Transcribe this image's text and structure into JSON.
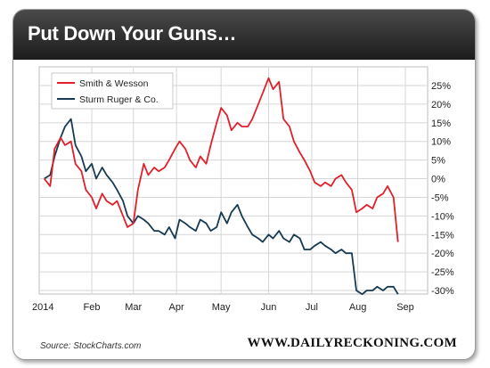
{
  "title": "Put Down Your Guns…",
  "source": "Source: StockCharts.com",
  "website": "WWW.DAILYRECKONING.COM",
  "chart_data": {
    "type": "line",
    "title": "Put Down Your Guns…",
    "x_range": [
      "2014-01-01",
      "2014-09-05"
    ],
    "x_tick_labels": [
      {
        "label": "2014",
        "date": "2014-01-01"
      },
      {
        "label": "Feb",
        "date": "2014-02-03"
      },
      {
        "label": "Mar",
        "date": "2014-03-03"
      },
      {
        "label": "Apr",
        "date": "2014-04-01"
      },
      {
        "label": "May",
        "date": "2014-05-01"
      },
      {
        "label": "Jun",
        "date": "2014-06-02"
      },
      {
        "label": "Jul",
        "date": "2014-07-01"
      },
      {
        "label": "Aug",
        "date": "2014-08-01"
      },
      {
        "label": "Sep",
        "date": "2014-09-02"
      }
    ],
    "y_unit": "%",
    "ylim": [
      -32,
      27
    ],
    "y_ticks": [
      25,
      20,
      15,
      10,
      5,
      0,
      -5,
      -10,
      -15,
      -20,
      -25,
      -30
    ],
    "y_axis_side": "right",
    "grid": true,
    "legend_position": "top-left",
    "series": [
      {
        "name": "Smith & Wesson",
        "color": "#e0202a",
        "points": [
          [
            "2014-01-02",
            0
          ],
          [
            "2014-01-06",
            -2
          ],
          [
            "2014-01-09",
            8
          ],
          [
            "2014-01-13",
            11
          ],
          [
            "2014-01-16",
            9
          ],
          [
            "2014-01-20",
            10
          ],
          [
            "2014-01-23",
            4
          ],
          [
            "2014-01-27",
            2
          ],
          [
            "2014-01-30",
            -3
          ],
          [
            "2014-02-03",
            -5
          ],
          [
            "2014-02-06",
            -8
          ],
          [
            "2014-02-10",
            -4
          ],
          [
            "2014-02-13",
            -6
          ],
          [
            "2014-02-17",
            -7
          ],
          [
            "2014-02-20",
            -6
          ],
          [
            "2014-02-24",
            -10
          ],
          [
            "2014-02-27",
            -13
          ],
          [
            "2014-03-03",
            -12
          ],
          [
            "2014-03-06",
            -3
          ],
          [
            "2014-03-10",
            4
          ],
          [
            "2014-03-13",
            1
          ],
          [
            "2014-03-17",
            3
          ],
          [
            "2014-03-20",
            2
          ],
          [
            "2014-03-24",
            3
          ],
          [
            "2014-03-27",
            5
          ],
          [
            "2014-03-31",
            8
          ],
          [
            "2014-04-03",
            10
          ],
          [
            "2014-04-07",
            8
          ],
          [
            "2014-04-10",
            5
          ],
          [
            "2014-04-14",
            3
          ],
          [
            "2014-04-17",
            6
          ],
          [
            "2014-04-21",
            4
          ],
          [
            "2014-04-24",
            9
          ],
          [
            "2014-04-28",
            15
          ],
          [
            "2014-05-01",
            19
          ],
          [
            "2014-05-05",
            17
          ],
          [
            "2014-05-08",
            13
          ],
          [
            "2014-05-12",
            15
          ],
          [
            "2014-05-15",
            14
          ],
          [
            "2014-05-19",
            14
          ],
          [
            "2014-05-22",
            16
          ],
          [
            "2014-05-26",
            20
          ],
          [
            "2014-05-29",
            23
          ],
          [
            "2014-06-02",
            27
          ],
          [
            "2014-06-05",
            24
          ],
          [
            "2014-06-09",
            26
          ],
          [
            "2014-06-12",
            16
          ],
          [
            "2014-06-16",
            14
          ],
          [
            "2014-06-19",
            10
          ],
          [
            "2014-06-23",
            7
          ],
          [
            "2014-06-26",
            5
          ],
          [
            "2014-06-30",
            2
          ],
          [
            "2014-07-03",
            -1
          ],
          [
            "2014-07-07",
            -2
          ],
          [
            "2014-07-10",
            -1
          ],
          [
            "2014-07-14",
            -2
          ],
          [
            "2014-07-17",
            0
          ],
          [
            "2014-07-21",
            1
          ],
          [
            "2014-07-24",
            -1
          ],
          [
            "2014-07-28",
            -3
          ],
          [
            "2014-07-31",
            -9
          ],
          [
            "2014-08-04",
            -8
          ],
          [
            "2014-08-07",
            -7
          ],
          [
            "2014-08-11",
            -8
          ],
          [
            "2014-08-14",
            -5
          ],
          [
            "2014-08-18",
            -4
          ],
          [
            "2014-08-21",
            -2
          ],
          [
            "2014-08-25",
            -5
          ],
          [
            "2014-08-28",
            -17
          ]
        ]
      },
      {
        "name": "Sturm Ruger & Co.",
        "color": "#173a52",
        "points": [
          [
            "2014-01-02",
            0
          ],
          [
            "2014-01-06",
            1
          ],
          [
            "2014-01-09",
            6
          ],
          [
            "2014-01-13",
            11
          ],
          [
            "2014-01-16",
            14
          ],
          [
            "2014-01-20",
            16
          ],
          [
            "2014-01-23",
            9
          ],
          [
            "2014-01-27",
            6
          ],
          [
            "2014-01-30",
            2
          ],
          [
            "2014-02-03",
            4
          ],
          [
            "2014-02-06",
            0
          ],
          [
            "2014-02-10",
            3
          ],
          [
            "2014-02-13",
            1
          ],
          [
            "2014-02-17",
            -1
          ],
          [
            "2014-02-20",
            -3
          ],
          [
            "2014-02-24",
            -6
          ],
          [
            "2014-02-27",
            -10
          ],
          [
            "2014-03-03",
            -12
          ],
          [
            "2014-03-06",
            -10
          ],
          [
            "2014-03-10",
            -11
          ],
          [
            "2014-03-13",
            -12
          ],
          [
            "2014-03-17",
            -14
          ],
          [
            "2014-03-20",
            -14
          ],
          [
            "2014-03-24",
            -15
          ],
          [
            "2014-03-27",
            -13
          ],
          [
            "2014-03-31",
            -16
          ],
          [
            "2014-04-03",
            -11
          ],
          [
            "2014-04-07",
            -12
          ],
          [
            "2014-04-10",
            -13
          ],
          [
            "2014-04-14",
            -14
          ],
          [
            "2014-04-17",
            -11
          ],
          [
            "2014-04-21",
            -12
          ],
          [
            "2014-04-24",
            -14
          ],
          [
            "2014-04-28",
            -13
          ],
          [
            "2014-05-01",
            -9
          ],
          [
            "2014-05-05",
            -12
          ],
          [
            "2014-05-08",
            -9
          ],
          [
            "2014-05-12",
            -7
          ],
          [
            "2014-05-15",
            -10
          ],
          [
            "2014-05-19",
            -13
          ],
          [
            "2014-05-22",
            -15
          ],
          [
            "2014-05-26",
            -16
          ],
          [
            "2014-05-29",
            -17
          ],
          [
            "2014-06-02",
            -15
          ],
          [
            "2014-06-05",
            -16
          ],
          [
            "2014-06-09",
            -14
          ],
          [
            "2014-06-12",
            -16
          ],
          [
            "2014-06-16",
            -17
          ],
          [
            "2014-06-19",
            -15
          ],
          [
            "2014-06-23",
            -16
          ],
          [
            "2014-06-26",
            -19
          ],
          [
            "2014-06-30",
            -19
          ],
          [
            "2014-07-03",
            -18
          ],
          [
            "2014-07-07",
            -17
          ],
          [
            "2014-07-10",
            -18
          ],
          [
            "2014-07-14",
            -19
          ],
          [
            "2014-07-17",
            -20
          ],
          [
            "2014-07-21",
            -19
          ],
          [
            "2014-07-24",
            -20
          ],
          [
            "2014-07-28",
            -20
          ],
          [
            "2014-07-31",
            -30
          ],
          [
            "2014-08-04",
            -31
          ],
          [
            "2014-08-07",
            -30
          ],
          [
            "2014-08-11",
            -30
          ],
          [
            "2014-08-14",
            -29
          ],
          [
            "2014-08-18",
            -30
          ],
          [
            "2014-08-21",
            -29
          ],
          [
            "2014-08-25",
            -29
          ],
          [
            "2014-08-28",
            -31
          ]
        ]
      }
    ]
  }
}
